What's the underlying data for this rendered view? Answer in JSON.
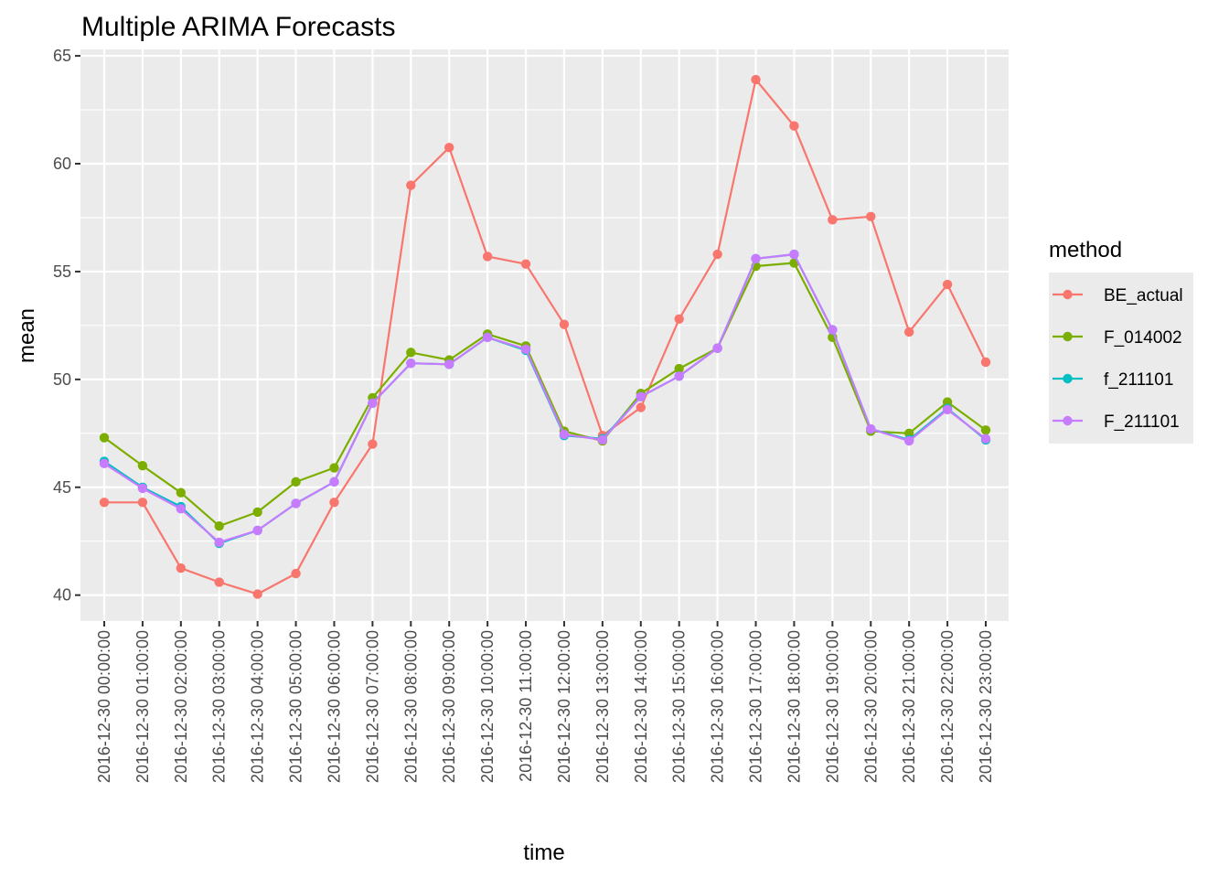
{
  "chart_data": {
    "type": "line",
    "title": "Multiple ARIMA Forecasts",
    "xlabel": "time",
    "ylabel": "mean",
    "ylim": [
      38.8,
      65.3
    ],
    "yticks": [
      40,
      45,
      50,
      55,
      60,
      65
    ],
    "grid": true,
    "legend": {
      "title": "method",
      "position": "right"
    },
    "x": [
      "2016-12-30 00:00:00",
      "2016-12-30 01:00:00",
      "2016-12-30 02:00:00",
      "2016-12-30 03:00:00",
      "2016-12-30 04:00:00",
      "2016-12-30 05:00:00",
      "2016-12-30 06:00:00",
      "2016-12-30 07:00:00",
      "2016-12-30 08:00:00",
      "2016-12-30 09:00:00",
      "2016-12-30 10:00:00",
      "2016-12-30 11:00:00",
      "2016-12-30 12:00:00",
      "2016-12-30 13:00:00",
      "2016-12-30 14:00:00",
      "2016-12-30 15:00:00",
      "2016-12-30 16:00:00",
      "2016-12-30 17:00:00",
      "2016-12-30 18:00:00",
      "2016-12-30 19:00:00",
      "2016-12-30 20:00:00",
      "2016-12-30 21:00:00",
      "2016-12-30 22:00:00",
      "2016-12-30 23:00:00"
    ],
    "series": [
      {
        "name": "BE_actual",
        "color": "#F8766D",
        "values": [
          44.3,
          44.3,
          41.25,
          40.6,
          40.05,
          41.0,
          44.3,
          47.0,
          59.0,
          60.75,
          55.7,
          55.35,
          52.55,
          47.4,
          48.7,
          52.8,
          55.8,
          63.9,
          61.75,
          57.4,
          57.55,
          52.2,
          54.4,
          50.8
        ]
      },
      {
        "name": "F_014002",
        "color": "#7CAE00",
        "values": [
          47.3,
          46.0,
          44.75,
          43.2,
          43.85,
          45.25,
          45.9,
          49.15,
          51.25,
          50.9,
          52.1,
          51.55,
          47.6,
          47.15,
          49.35,
          50.5,
          51.45,
          55.25,
          55.4,
          51.95,
          47.6,
          47.5,
          48.95,
          47.65
        ]
      },
      {
        "name": "f_211101",
        "color": "#00BFC4",
        "values": [
          46.2,
          45.0,
          44.1,
          42.4,
          43.0,
          44.25,
          45.25,
          48.9,
          50.75,
          50.7,
          51.95,
          51.35,
          47.4,
          47.25,
          49.2,
          50.15,
          51.45,
          55.6,
          55.8,
          52.3,
          47.7,
          47.2,
          48.65,
          47.2
        ]
      },
      {
        "name": "F_211101",
        "color": "#C77CFF",
        "values": [
          46.1,
          44.95,
          44.0,
          42.45,
          43.0,
          44.25,
          45.25,
          48.9,
          50.75,
          50.7,
          51.95,
          51.4,
          47.45,
          47.2,
          49.2,
          50.15,
          51.45,
          55.6,
          55.8,
          52.3,
          47.7,
          47.15,
          48.6,
          47.25
        ]
      }
    ]
  }
}
